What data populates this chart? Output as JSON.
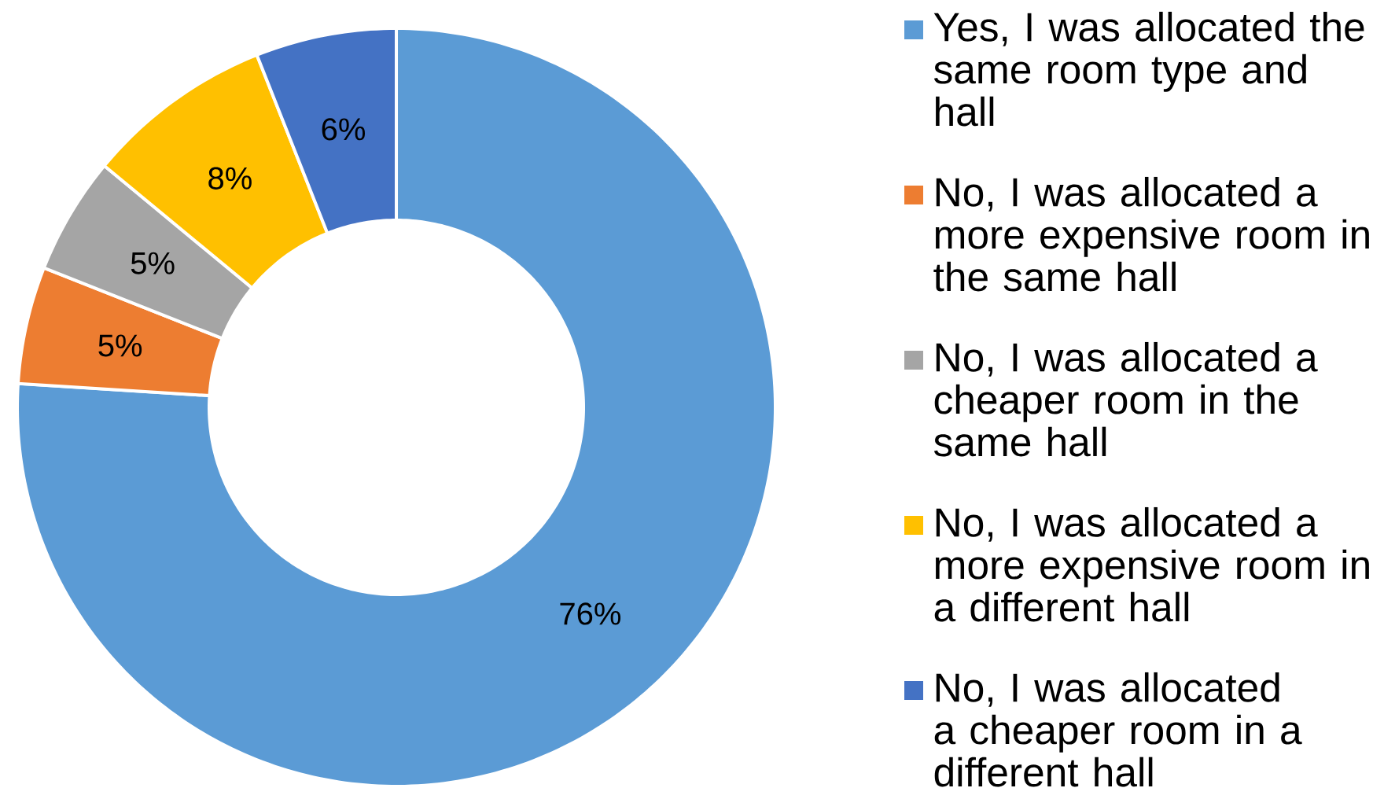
{
  "chart_data": {
    "type": "donut",
    "categories": [
      "Yes, I was allocated the same room type and hall",
      "No, I was allocated a more expensive room in the same hall",
      "No, I was allocated a cheaper room in the same hall",
      "No, I was allocated a more expensive room in a different hall",
      "No, I was allocated a cheaper room in a different hall"
    ],
    "values": [
      76,
      5,
      5,
      8,
      6
    ],
    "value_labels": [
      "76%",
      "5%",
      "5%",
      "8%",
      "6%"
    ],
    "colors": [
      "#5b9bd5",
      "#ed7d31",
      "#a5a5a5",
      "#ffc000",
      "#4472c4"
    ],
    "legend": "right"
  }
}
